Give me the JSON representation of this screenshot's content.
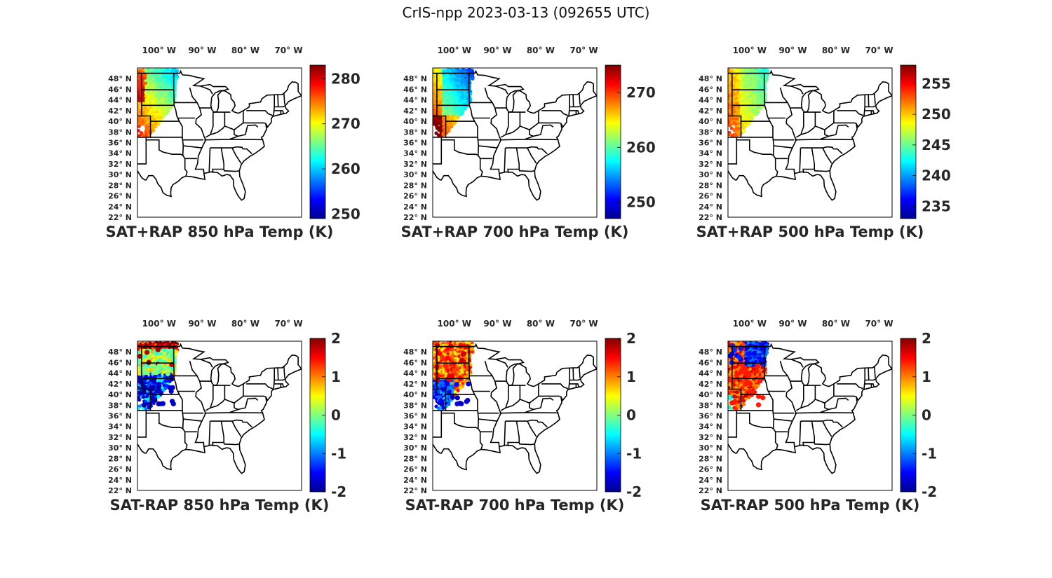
{
  "figure": {
    "title": "CrIS-npp 2023-03-13 (092655 UTC)"
  },
  "map_axes": {
    "lon_labels": [
      "100° W",
      "90° W",
      "80° W",
      "70° W"
    ],
    "lon_values": [
      -100,
      -90,
      -80,
      -70
    ],
    "lat_labels": [
      "48° N",
      "46° N",
      "44° N",
      "42° N",
      "40° N",
      "38° N",
      "36° N",
      "34° N",
      "32° N",
      "30° N",
      "28° N",
      "26° N",
      "24° N",
      "22° N"
    ],
    "lat_values": [
      48,
      46,
      44,
      42,
      40,
      38,
      36,
      34,
      32,
      30,
      28,
      26,
      24,
      22
    ],
    "lon_range": [
      -105,
      -67
    ],
    "lat_range": [
      22,
      50
    ]
  },
  "colormap": "jet",
  "panels": [
    {
      "title": "SAT+RAP 850 hPa Temp (K)",
      "clim": [
        249,
        283
      ],
      "ticks": [
        250,
        260,
        270,
        280
      ],
      "tick_labels": [
        "250",
        "260",
        "270",
        "280"
      ],
      "field": "t850"
    },
    {
      "title": "SAT+RAP 700 hPa Temp (K)",
      "clim": [
        247,
        275
      ],
      "ticks": [
        250,
        260,
        270
      ],
      "tick_labels": [
        "250",
        "260",
        "270"
      ],
      "field": "t700"
    },
    {
      "title": "SAT+RAP 500 hPa Temp (K)",
      "clim": [
        233,
        258
      ],
      "ticks": [
        235,
        240,
        245,
        250,
        255
      ],
      "tick_labels": [
        "235",
        "240",
        "245",
        "250",
        "255"
      ],
      "field": "t500"
    },
    {
      "title": "SAT-RAP 850 hPa Temp (K)",
      "clim": [
        -2,
        2
      ],
      "ticks": [
        -2,
        -1,
        0,
        1,
        2
      ],
      "tick_labels": [
        "-2",
        "-1",
        "0",
        "1",
        "2"
      ],
      "field": "d850"
    },
    {
      "title": "SAT-RAP 700 hPa Temp (K)",
      "clim": [
        -2,
        2
      ],
      "ticks": [
        -2,
        -1,
        0,
        1,
        2
      ],
      "tick_labels": [
        "-2",
        "-1",
        "0",
        "1",
        "2"
      ],
      "field": "d700"
    },
    {
      "title": "SAT-RAP 500 hPa Temp (K)",
      "clim": [
        -2,
        2
      ],
      "ticks": [
        -2,
        -1,
        0,
        1,
        2
      ],
      "tick_labels": [
        "-2",
        "-1",
        "0",
        "1",
        "2"
      ],
      "field": "d500"
    }
  ],
  "swath": {
    "bounds_lonlat": [
      [
        -105,
        49.5
      ],
      [
        -96,
        49.5
      ],
      [
        -96.5,
        43
      ],
      [
        -100,
        39
      ],
      [
        -102,
        37.5
      ],
      [
        -105,
        40
      ]
    ],
    "colors": {
      "border": "#000000",
      "land": "#ffffff",
      "frame": "#000000"
    }
  }
}
